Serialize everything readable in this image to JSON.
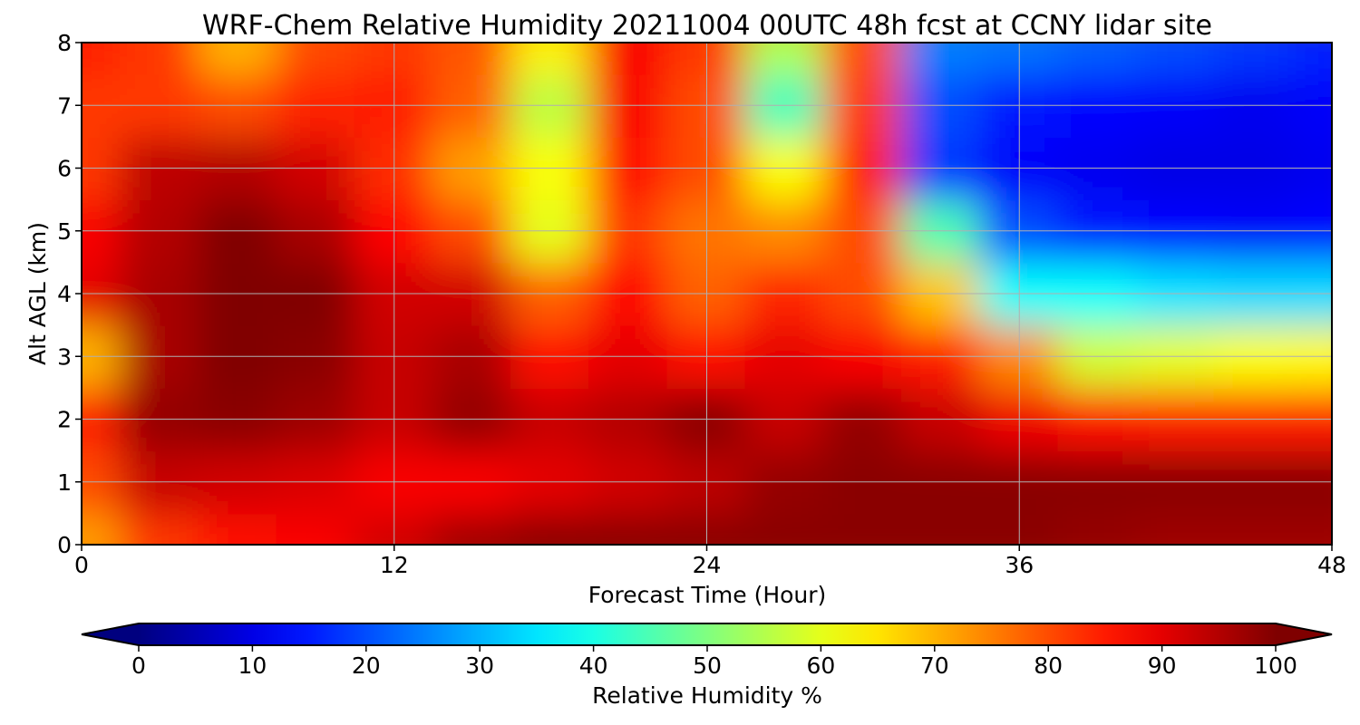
{
  "chart_data": {
    "type": "heatmap",
    "title": "WRF-Chem Relative Humidity 20211004 00UTC 48h fcst at CCNY lidar site",
    "xlabel": "Forecast Time (Hour)",
    "ylabel": "Alt AGL (km)",
    "xlim": [
      0,
      48
    ],
    "ylim": [
      0,
      8
    ],
    "xticks": [
      0,
      12,
      24,
      36,
      48
    ],
    "yticks": [
      0,
      1,
      2,
      3,
      4,
      5,
      6,
      7,
      8
    ],
    "grid": true,
    "colormap": "jet",
    "colorbar": {
      "label": "Relative Humidity %",
      "range": [
        0,
        100
      ],
      "ticks": [
        0,
        10,
        20,
        30,
        40,
        50,
        60,
        70,
        80,
        90,
        100
      ],
      "extend": "both",
      "orientation": "horizontal"
    },
    "x": [
      0,
      3,
      6,
      9,
      12,
      15,
      18,
      21,
      24,
      27,
      30,
      33,
      36,
      39,
      42,
      45,
      48
    ],
    "y": [
      0,
      1,
      2,
      3,
      4,
      5,
      6,
      7,
      8
    ],
    "z": [
      [
        72,
        82,
        86,
        88,
        92,
        97,
        99,
        99,
        99,
        99,
        99,
        99,
        99,
        98,
        97,
        97,
        97
      ],
      [
        80,
        93,
        92,
        91,
        88,
        88,
        90,
        92,
        94,
        98,
        99,
        99,
        99,
        99,
        99,
        99,
        99
      ],
      [
        85,
        98,
        99,
        97,
        93,
        98,
        93,
        95,
        99,
        93,
        98,
        93,
        89,
        86,
        85,
        85,
        85
      ],
      [
        70,
        96,
        100,
        99,
        93,
        96,
        86,
        90,
        86,
        90,
        88,
        85,
        74,
        58,
        60,
        62,
        63
      ],
      [
        90,
        96,
        100,
        100,
        92,
        92,
        78,
        87,
        78,
        84,
        80,
        68,
        38,
        38,
        35,
        34,
        34
      ],
      [
        88,
        95,
        100,
        96,
        87,
        80,
        60,
        82,
        76,
        74,
        80,
        45,
        20,
        15,
        13,
        12,
        13
      ],
      [
        82,
        94,
        95,
        92,
        83,
        72,
        62,
        86,
        80,
        62,
        84,
        18,
        12,
        11,
        10,
        10,
        11
      ],
      [
        82,
        82,
        80,
        84,
        85,
        78,
        56,
        88,
        80,
        44,
        82,
        20,
        15,
        13,
        12,
        11,
        12
      ],
      [
        85,
        82,
        70,
        80,
        82,
        79,
        64,
        88,
        82,
        55,
        80,
        25,
        24,
        22,
        20,
        18,
        16
      ]
    ]
  }
}
